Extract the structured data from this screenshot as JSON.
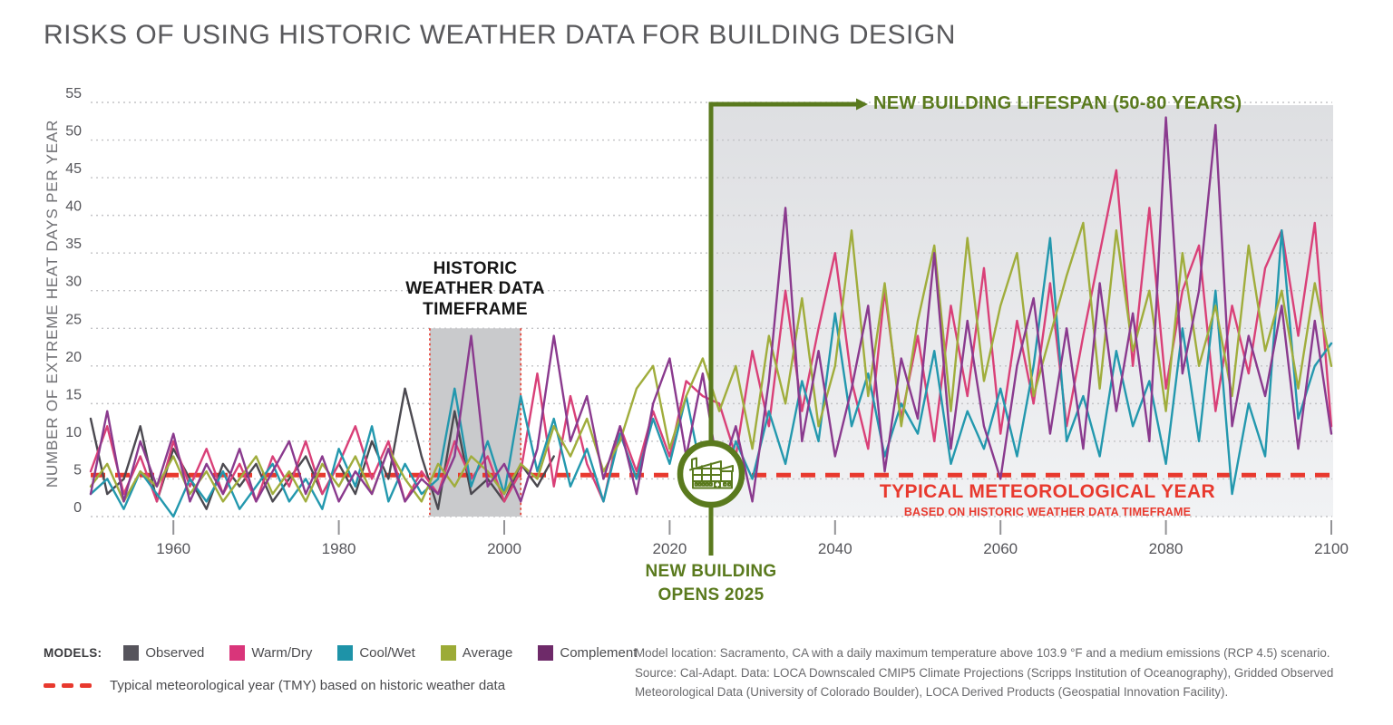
{
  "title": "RISKS OF USING HISTORIC WEATHER DATA FOR BUILDING DESIGN",
  "colors": {
    "green": "#5a7a1e",
    "red": "#e8392e",
    "grid": "#c3c3c6",
    "tick": "#939396",
    "axis_text": "#55555a",
    "historic_band_fill": "#c9cacc",
    "projection_top": "#dedfe2",
    "projection_bottom": "#f1f2f4"
  },
  "chart_data": {
    "type": "line",
    "ylabel": "NUMBER OF EXTREME HEAT DAYS PER YEAR",
    "xlabel": "",
    "ylim": [
      0,
      55
    ],
    "xlim": [
      1950,
      2100
    ],
    "yticks": [
      0,
      5,
      10,
      15,
      20,
      25,
      30,
      35,
      40,
      45,
      50,
      55
    ],
    "xticks": [
      1960,
      1980,
      2000,
      2020,
      2040,
      2060,
      2080,
      2100
    ],
    "grid": "horizontal-dotted",
    "legend_position": "bottom-left",
    "x": [
      1950,
      1952,
      1954,
      1956,
      1958,
      1960,
      1962,
      1964,
      1966,
      1968,
      1970,
      1972,
      1974,
      1976,
      1978,
      1980,
      1982,
      1984,
      1986,
      1988,
      1990,
      1992,
      1994,
      1996,
      1998,
      2000,
      2002,
      2004,
      2006,
      2008,
      2010,
      2012,
      2014,
      2016,
      2018,
      2020,
      2022,
      2024,
      2026,
      2028,
      2030,
      2032,
      2034,
      2036,
      2038,
      2040,
      2042,
      2044,
      2046,
      2048,
      2050,
      2052,
      2054,
      2056,
      2058,
      2060,
      2062,
      2064,
      2066,
      2068,
      2070,
      2072,
      2074,
      2076,
      2078,
      2080,
      2082,
      2084,
      2086,
      2088,
      2090,
      2092,
      2094,
      2096,
      2098,
      2100
    ],
    "series": [
      {
        "name": "Observed",
        "color": "#4b4950",
        "legend_color": "#56545c",
        "values": [
          13,
          3,
          5,
          12,
          2,
          9,
          5,
          1,
          7,
          4,
          7,
          2,
          5,
          8,
          3,
          7,
          3,
          10,
          5,
          17,
          8,
          1,
          14,
          3,
          5,
          2,
          7,
          4,
          8
        ]
      },
      {
        "name": "Warm/Dry",
        "color": "#d94078",
        "legend_color": "#d9357a",
        "values": [
          6,
          12,
          3,
          8,
          2,
          10,
          4,
          9,
          3,
          7,
          2,
          8,
          4,
          10,
          3,
          7,
          12,
          5,
          10,
          2,
          6,
          3,
          10,
          5,
          8,
          2,
          6,
          19,
          4,
          16,
          7,
          2,
          12,
          6,
          14,
          8,
          18,
          16,
          15,
          8,
          22,
          12,
          30,
          14,
          25,
          35,
          18,
          9,
          30,
          13,
          24,
          10,
          28,
          16,
          33,
          11,
          26,
          15,
          31,
          12,
          24,
          35,
          46,
          20,
          41,
          17,
          30,
          36,
          14,
          28,
          19,
          33,
          38,
          24,
          39,
          12
        ]
      },
      {
        "name": "Cool/Wet",
        "color": "#2398ae",
        "legend_color": "#1e93a8",
        "values": [
          3,
          5,
          1,
          6,
          3,
          0,
          5,
          2,
          6,
          1,
          4,
          7,
          2,
          5,
          1,
          9,
          4,
          12,
          2,
          7,
          3,
          5,
          17,
          4,
          10,
          3,
          16,
          6,
          13,
          4,
          9,
          2,
          11,
          5,
          13,
          7,
          16,
          5,
          2,
          10,
          5,
          14,
          7,
          18,
          10,
          27,
          12,
          19,
          8,
          15,
          11,
          22,
          7,
          14,
          9,
          17,
          8,
          20,
          37,
          10,
          16,
          8,
          22,
          12,
          18,
          7,
          25,
          10,
          30,
          3,
          15,
          8,
          38,
          13,
          20,
          23
        ]
      },
      {
        "name": "Average",
        "color": "#a0ad3c",
        "legend_color": "#9cab36",
        "values": [
          4,
          7,
          2,
          6,
          4,
          8,
          3,
          6,
          2,
          5,
          8,
          3,
          6,
          2,
          7,
          4,
          8,
          3,
          9,
          5,
          2,
          7,
          4,
          8,
          6,
          3,
          7,
          5,
          12,
          8,
          13,
          6,
          10,
          17,
          20,
          9,
          16,
          21,
          14,
          20,
          9,
          24,
          15,
          29,
          12,
          20,
          38,
          16,
          31,
          12,
          26,
          36,
          14,
          37,
          18,
          28,
          35,
          16,
          24,
          32,
          39,
          17,
          38,
          22,
          30,
          14,
          35,
          20,
          28,
          16,
          36,
          22,
          30,
          17,
          31,
          20
        ]
      },
      {
        "name": "Complement",
        "color": "#8a3a8e",
        "legend_color": "#6e2a69",
        "values": [
          3,
          14,
          2,
          10,
          4,
          11,
          2,
          7,
          3,
          9,
          2,
          6,
          10,
          3,
          8,
          2,
          6,
          3,
          9,
          2,
          5,
          3,
          8,
          24,
          4,
          7,
          2,
          9,
          24,
          10,
          16,
          5,
          12,
          3,
          15,
          21,
          8,
          19,
          5,
          12,
          2,
          18,
          41,
          10,
          22,
          8,
          17,
          28,
          6,
          21,
          13,
          35,
          9,
          26,
          12,
          5,
          20,
          29,
          11,
          25,
          9,
          31,
          14,
          27,
          10,
          53,
          19,
          30,
          52,
          12,
          24,
          16,
          28,
          9,
          26,
          11
        ]
      }
    ],
    "tmy_line": {
      "value": 5.5,
      "style": "dashed",
      "label": "TYPICAL METEOROLOGICAL YEAR",
      "sublabel": "BASED ON HISTORIC WEATHER DATA TIMEFRAME"
    },
    "regions": {
      "historic": {
        "x_start": 1991,
        "x_end": 2002,
        "y_top": 25,
        "label_line1": "HISTORIC",
        "label_line2": "WEATHER DATA",
        "label_line3": "TIMEFRAME"
      },
      "projection": {
        "x_start": 2025,
        "x_end": 2100
      }
    },
    "annotations": {
      "lifespan": "NEW BUILDING LIFESPAN (50-80 YEARS)",
      "opens_line1": "NEW BUILDING",
      "opens_line2": "OPENS 2025",
      "opens_year": "2025"
    }
  },
  "legend": {
    "models_label": "MODELS:",
    "tmy_label": "Typical meteorological year (TMY) based on historic weather data"
  },
  "footer": {
    "line1": "Model location: Sacramento, CA with a daily maximum temperature above 103.9 °F and a medium emissions (RCP 4.5) scenario.",
    "line2": "Source: Cal-Adapt. Data: LOCA Downscaled CMIP5 Climate Projections (Scripps Institution of Oceanography), Gridded Observed Meteorological Data (University of Colorado Boulder), LOCA Derived Products (Geospatial Innovation Facility)."
  }
}
